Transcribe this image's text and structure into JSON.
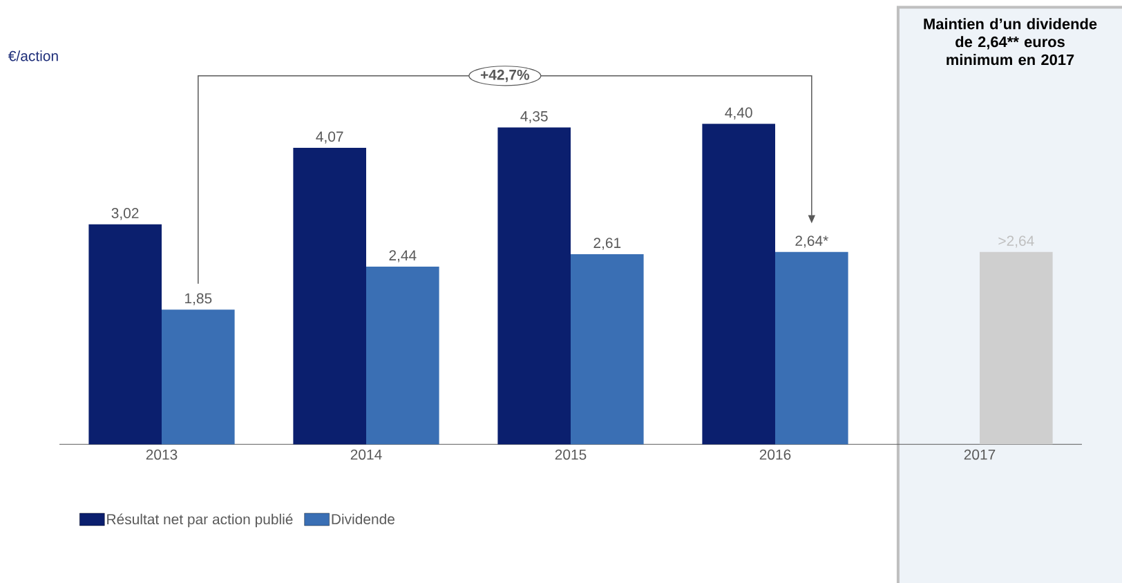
{
  "chart_data": {
    "type": "bar",
    "ylabel": "€/action",
    "categories": [
      "2013",
      "2014",
      "2015",
      "2016",
      "2017"
    ],
    "legend": "bottom",
    "grid": false,
    "series": [
      {
        "name": "Résultat net par action publié",
        "color": "#0b1f6e",
        "values": [
          3.02,
          4.07,
          4.35,
          4.4,
          null
        ],
        "value_labels": [
          "3,02",
          "4,07",
          "4,35",
          "4,40",
          null
        ]
      },
      {
        "name": "Dividende",
        "color": "#3a6fb4",
        "colors": [
          "#3a6fb4",
          "#3a6fb4",
          "#3a6fb4",
          "#3a6fb4",
          "#cfcfcf"
        ],
        "values": [
          1.85,
          2.44,
          2.61,
          2.64,
          2.64
        ],
        "value_labels": [
          "1,85",
          "2,44",
          "2,61",
          "2,64*",
          ">2,64"
        ]
      }
    ],
    "annotations": [
      "+42,7%"
    ],
    "bands": [
      {
        "axis": "x",
        "from": "2017",
        "to": "2017",
        "color": "#eef3f8",
        "label": "Maintien d’un dividende de 2,64** euros minimum en 2017"
      }
    ]
  }
}
